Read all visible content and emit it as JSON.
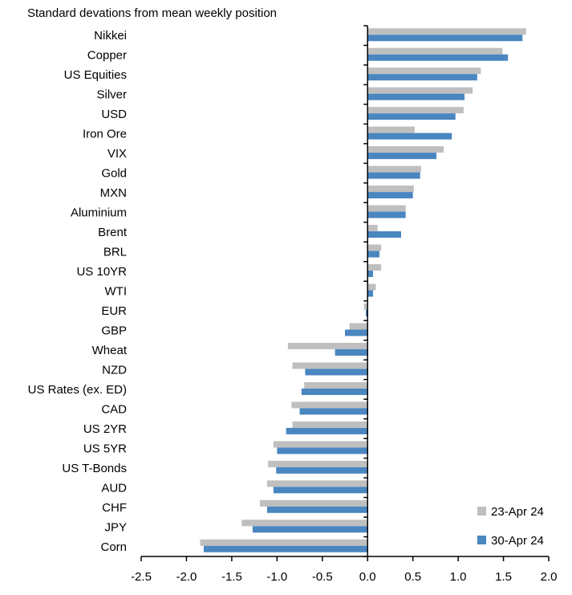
{
  "chart_data": {
    "type": "bar",
    "orientation": "horizontal",
    "title": "Standard devations from mean weekly position",
    "categories": [
      "Nikkei",
      "Copper",
      "US Equities",
      "Silver",
      "USD",
      "Iron Ore",
      "VIX",
      "Gold",
      "MXN",
      "Aluminium",
      "Brent",
      "BRL",
      "US 10YR",
      "WTI",
      "EUR",
      "GBP",
      "Wheat",
      "NZD",
      "US Rates (ex. ED)",
      "CAD",
      "US 2YR",
      "US 5YR",
      "US T-Bonds",
      "AUD",
      "CHF",
      "JPY",
      "Corn"
    ],
    "series": [
      {
        "name": "23-Apr 24",
        "color": "#BFBFBF",
        "values": [
          1.75,
          1.49,
          1.25,
          1.16,
          1.06,
          0.52,
          0.84,
          0.59,
          0.51,
          0.42,
          0.11,
          0.15,
          0.15,
          0.09,
          -0.04,
          -0.2,
          -0.88,
          -0.83,
          -0.7,
          -0.84,
          -0.83,
          -1.04,
          -1.1,
          -1.11,
          -1.19,
          -1.39,
          -1.85
        ]
      },
      {
        "name": "30-Apr 24",
        "color": "#4A86C0",
        "values": [
          1.71,
          1.55,
          1.21,
          1.07,
          0.97,
          0.93,
          0.76,
          0.58,
          0.5,
          0.42,
          0.37,
          0.13,
          0.06,
          0.06,
          -0.02,
          -0.25,
          -0.36,
          -0.69,
          -0.73,
          -0.75,
          -0.9,
          -1.0,
          -1.01,
          -1.04,
          -1.11,
          -1.27,
          -1.81
        ]
      }
    ],
    "xlim": [
      -2.5,
      2.0
    ],
    "xticks": [
      "-2.5",
      "-2.0",
      "-1.5",
      "-1.0",
      "-0.5",
      "0.0",
      "0.5",
      "1.0",
      "1.5",
      "2.0"
    ],
    "grid": false,
    "legend": "bottom-right"
  }
}
